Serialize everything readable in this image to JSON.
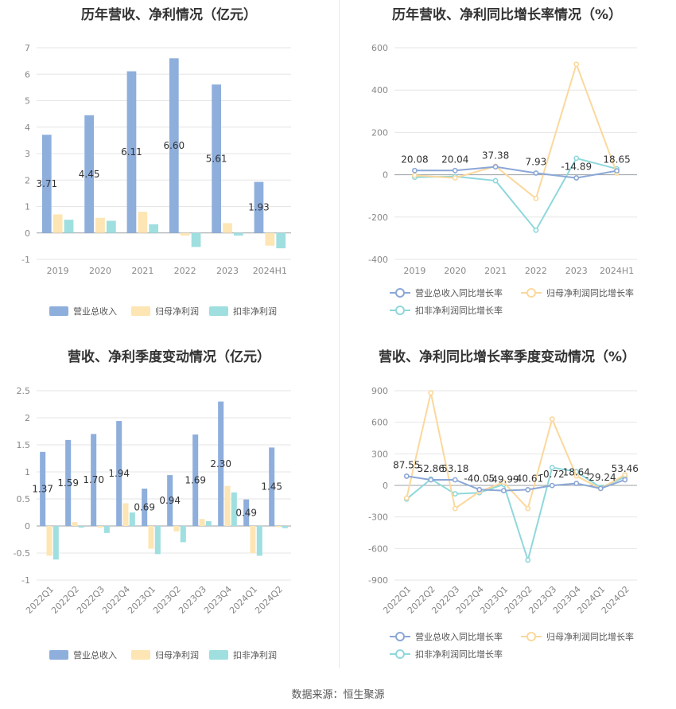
{
  "footer": "数据来源：恒生聚源",
  "colors": {
    "revenue": "#8eaedc",
    "net_profit": "#fde5b4",
    "deducted_profit": "#9fdfe0",
    "revenue_line": "#8ba7d6",
    "net_profit_line": "#fbd89c",
    "deducted_line": "#8fd8dc"
  },
  "chart_data": [
    {
      "type": "bar",
      "title": "历年营收、净利情况（亿元）",
      "categories": [
        "2019",
        "2020",
        "2021",
        "2022",
        "2023",
        "2024H1"
      ],
      "ylim": [
        -1,
        7
      ],
      "yticks": [
        -1,
        0,
        1,
        2,
        3,
        4,
        5,
        6,
        7
      ],
      "series": [
        {
          "name": "营业总收入",
          "values": [
            3.71,
            4.45,
            6.11,
            6.6,
            5.61,
            1.93
          ]
        },
        {
          "name": "归母净利润",
          "values": [
            0.7,
            0.57,
            0.8,
            -0.1,
            0.37,
            -0.48
          ]
        },
        {
          "name": "扣非净利润",
          "values": [
            0.5,
            0.46,
            0.33,
            -0.53,
            -0.1,
            -0.58
          ]
        }
      ],
      "data_labels": [
        "3.71",
        "4.45",
        "6.11",
        "6.60",
        "5.61",
        "1.93"
      ],
      "legend": "bottom"
    },
    {
      "type": "line",
      "title": "历年营收、净利同比增长率情况（%）",
      "categories": [
        "2019",
        "2020",
        "2021",
        "2022",
        "2023",
        "2024H1"
      ],
      "ylim": [
        -400,
        600
      ],
      "yticks": [
        -400,
        -200,
        0,
        200,
        400,
        600
      ],
      "series": [
        {
          "name": "营业总收入同比增长率",
          "values": [
            20.08,
            20.04,
            37.38,
            7.93,
            -14.89,
            18.65
          ]
        },
        {
          "name": "归母净利润同比增长率",
          "values": [
            -3,
            -15,
            40,
            -112,
            522,
            8
          ]
        },
        {
          "name": "扣非净利润同比增长率",
          "values": [
            -12,
            -8,
            -28,
            -262,
            78,
            28
          ]
        }
      ],
      "data_labels": [
        "20.08",
        "20.04",
        "37.38",
        "7.93",
        "-14.89",
        "18.65"
      ],
      "legend": "bottom"
    },
    {
      "type": "bar",
      "title": "营收、净利季度变动情况（亿元）",
      "categories": [
        "2022Q1",
        "2022Q2",
        "2022Q3",
        "2022Q4",
        "2023Q1",
        "2023Q2",
        "2023Q3",
        "2023Q4",
        "2024Q1",
        "2024Q2"
      ],
      "ylim": [
        -1,
        2.5
      ],
      "yticks": [
        -1,
        -0.5,
        0,
        0.5,
        1,
        1.5,
        2,
        2.5
      ],
      "series": [
        {
          "name": "营业总收入",
          "values": [
            1.37,
            1.59,
            1.7,
            1.94,
            0.69,
            0.94,
            1.69,
            2.3,
            0.49,
            1.45
          ]
        },
        {
          "name": "归母净利润",
          "values": [
            -0.55,
            0.07,
            -0.03,
            0.42,
            -0.42,
            -0.1,
            0.13,
            0.74,
            -0.5,
            -0.02
          ]
        },
        {
          "name": "扣非净利润",
          "values": [
            -0.62,
            -0.03,
            -0.13,
            0.25,
            -0.52,
            -0.3,
            0.09,
            0.62,
            -0.55,
            -0.04
          ]
        }
      ],
      "data_labels": [
        "1.37",
        "1.59",
        "1.70",
        "1.94",
        "0.69",
        "0.94",
        "1.69",
        "2.30",
        "0.49",
        "1.45"
      ],
      "legend": "bottom"
    },
    {
      "type": "line",
      "title": "营收、净利同比增长率季度变动情况（%）",
      "categories": [
        "2022Q1",
        "2022Q2",
        "2022Q3",
        "2022Q4",
        "2023Q1",
        "2023Q2",
        "2023Q3",
        "2023Q4",
        "2024Q1",
        "2024Q2"
      ],
      "ylim": [
        -900,
        900
      ],
      "yticks": [
        -900,
        -600,
        -300,
        0,
        300,
        600,
        900
      ],
      "series": [
        {
          "name": "营业总收入同比增长率",
          "values": [
            87.55,
            52.86,
            53.18,
            -40.05,
            -49.99,
            -40.61,
            -0.72,
            18.64,
            -29.24,
            53.46
          ]
        },
        {
          "name": "归母净利润同比增长率",
          "values": [
            -120,
            880,
            -220,
            -60,
            30,
            -220,
            630,
            90,
            -30,
            100
          ]
        },
        {
          "name": "扣非净利润同比增长率",
          "values": [
            -130,
            60,
            -80,
            -70,
            10,
            -710,
            170,
            130,
            -20,
            80
          ]
        }
      ],
      "data_labels": [
        "87.55",
        "52.86",
        "53.18",
        "-40.05",
        "-49.99",
        "-40.61",
        "-0.72",
        "18.64",
        "-29.24",
        "53.46"
      ],
      "legend": "bottom"
    }
  ]
}
